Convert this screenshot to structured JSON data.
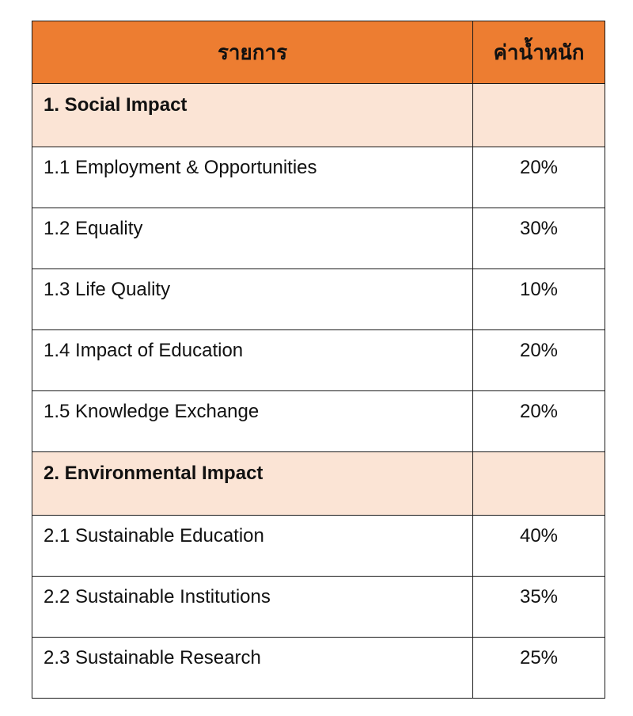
{
  "table": {
    "header": {
      "item": "รายการ",
      "weight": "ค่าน้ำหนัก"
    },
    "groups": [
      {
        "title": "1. Social Impact",
        "rows": [
          {
            "item": "1.1 Employment & Opportunities",
            "weight": "20%"
          },
          {
            "item": "1.2 Equality",
            "weight": "30%"
          },
          {
            "item": "1.3 Life Quality",
            "weight": "10%"
          },
          {
            "item": "1.4 Impact of Education",
            "weight": "20%"
          },
          {
            "item": "1.5 Knowledge Exchange",
            "weight": "20%"
          }
        ]
      },
      {
        "title": "2. Environmental Impact",
        "rows": [
          {
            "item": "2.1 Sustainable Education",
            "weight": "40%"
          },
          {
            "item": "2.2 Sustainable Institutions",
            "weight": "35%"
          },
          {
            "item": "2.3 Sustainable Research",
            "weight": "25%"
          }
        ]
      }
    ]
  },
  "colors": {
    "header_bg": "#ed7d31",
    "section_bg": "#fbe4d5",
    "border": "#1a1a1a"
  }
}
